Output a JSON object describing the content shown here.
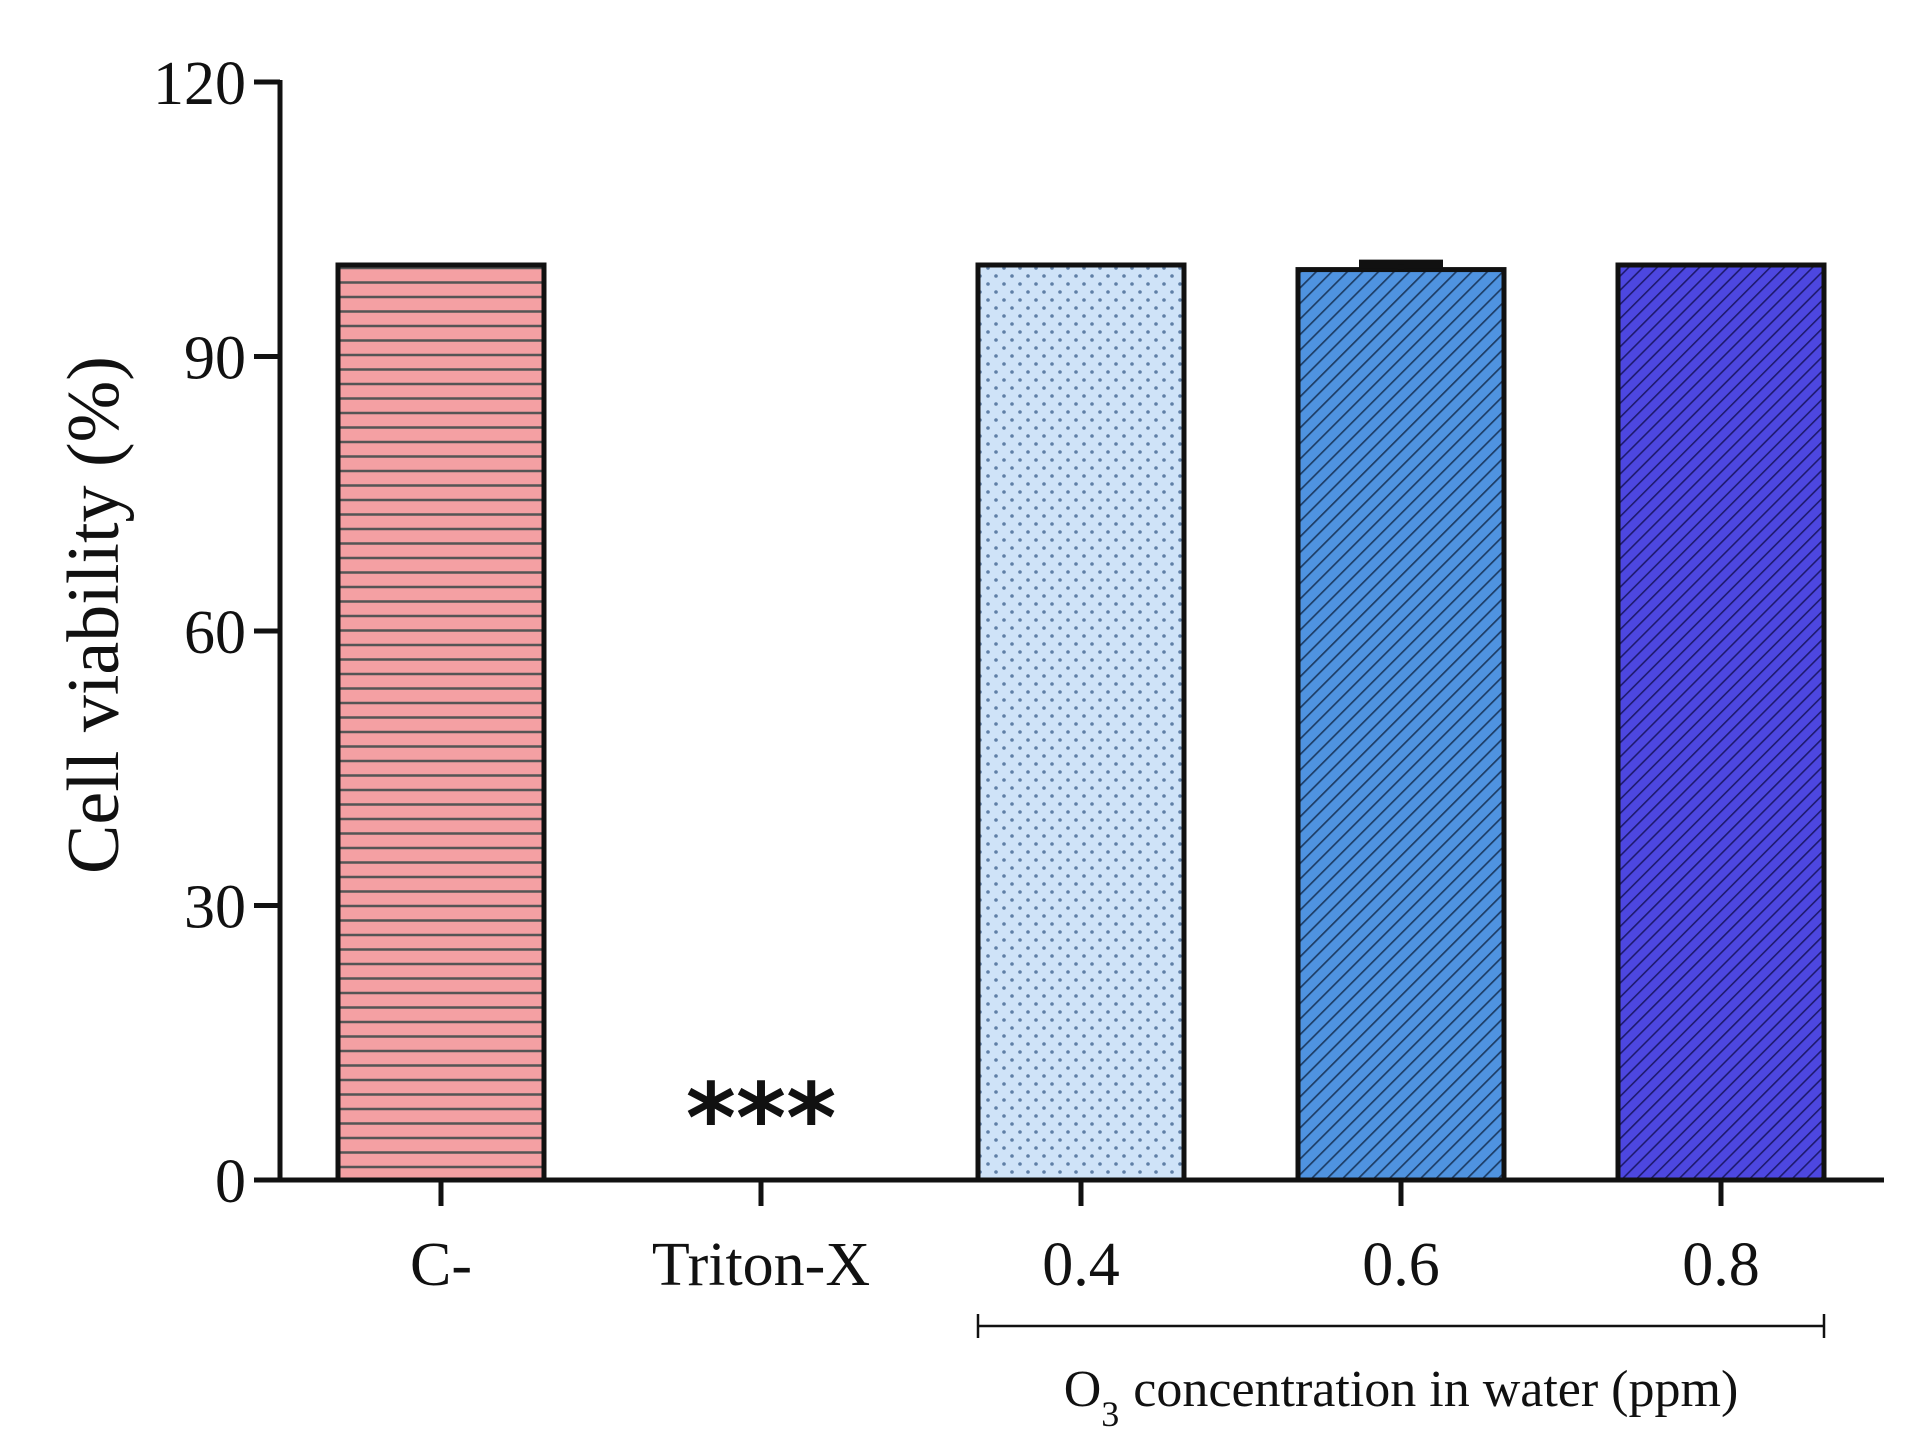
{
  "chart_data": {
    "type": "bar",
    "title": "",
    "xlabel": "",
    "ylabel": "Cell viability (%)",
    "ylim": [
      0,
      120
    ],
    "yticks": [
      0,
      30,
      60,
      90,
      120
    ],
    "categories": [
      "C-",
      "Triton-X",
      "0.4",
      "0.6",
      "0.8"
    ],
    "values": [
      100,
      0,
      100,
      99.5,
      100
    ],
    "errors": [
      0,
      0,
      0,
      0.6,
      0
    ],
    "colors": [
      "#f4a0a3",
      "#ffffff",
      "#cfe3f8",
      "#4f93e0",
      "#4d47e0"
    ],
    "patterns": [
      "horizontal-lines",
      "none",
      "dots",
      "diagonal-lines",
      "dense-diagonal-lines"
    ],
    "annotations": [
      {
        "category": "Triton-X",
        "text": "***"
      }
    ],
    "group": {
      "categories": [
        "0.4",
        "0.6",
        "0.8"
      ],
      "label_prefix": "O",
      "label_subscript": "3",
      "label_suffix": " concentration in water (ppm)"
    }
  }
}
